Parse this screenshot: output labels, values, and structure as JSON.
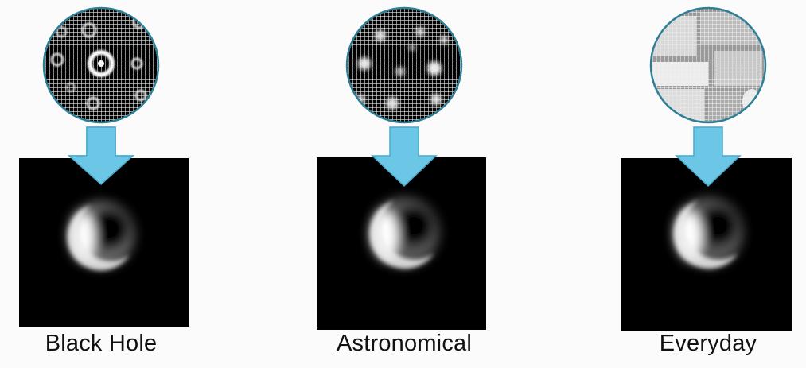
{
  "panels": [
    {
      "id": "black-hole",
      "label": "Black Hole"
    },
    {
      "id": "astronomical",
      "label": "Astronomical"
    },
    {
      "id": "everyday",
      "label": "Everyday"
    }
  ],
  "colors": {
    "circle_border": "#2e7f95",
    "arrow_fill": "#6cc6e6",
    "arrow_stroke": "#4aa8cb",
    "background": "#fbfbfb"
  }
}
